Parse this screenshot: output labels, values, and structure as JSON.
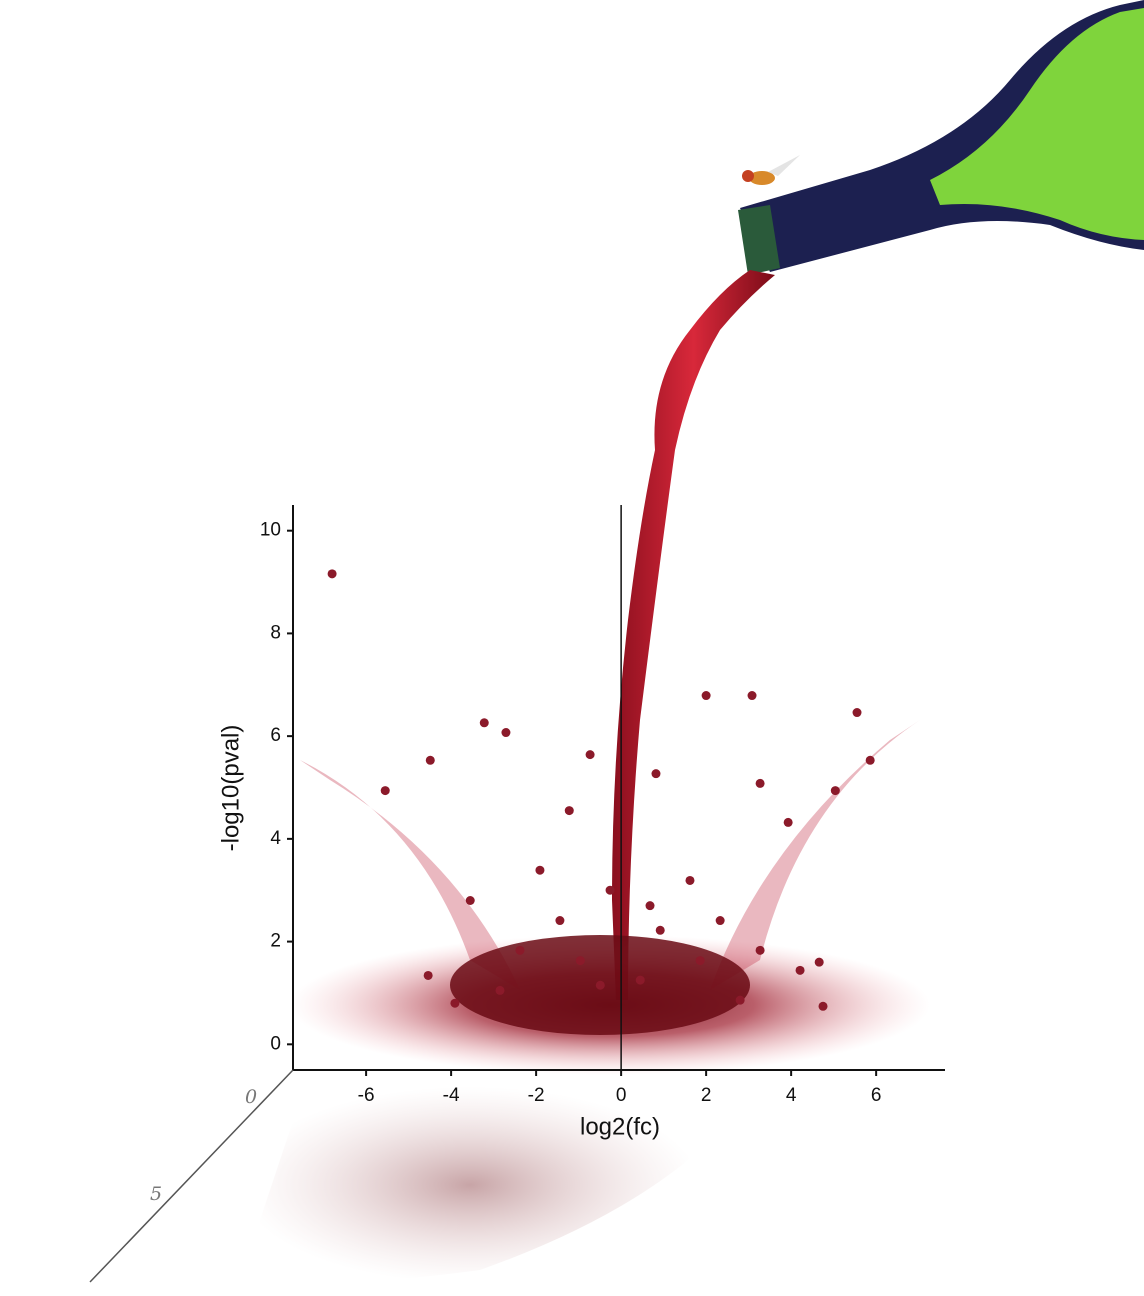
{
  "chart_data": {
    "type": "scatter",
    "x_label": "log2(fc)",
    "y_label": "-log10(pval)",
    "xlim": [
      -7.72,
      7.62
    ],
    "ylim": [
      -0.5,
      10.5
    ],
    "xticks": [
      -6,
      -4,
      -2,
      0,
      2,
      4,
      6
    ],
    "yticks": [
      0,
      2,
      4,
      6,
      8,
      10
    ],
    "reference_line_x": 0,
    "depth_ticks": [
      "0",
      "5"
    ],
    "color": "#8b1a2a",
    "x": [
      -6.8,
      -3.22,
      2.0,
      3.08,
      5.55,
      -2.71,
      4.66,
      4.75,
      -4.54,
      -3.91,
      -1.22,
      -0.73,
      0.82,
      3.27,
      3.93,
      -1.91,
      -3.55,
      1.62,
      2.33,
      4.21,
      3.27,
      -2.38,
      -1.44,
      0.92,
      1.86,
      -0.96,
      -2.85,
      2.8,
      0.45,
      -0.49,
      -4.49,
      -5.55,
      5.86,
      5.04,
      -0.26,
      0.68
    ],
    "values": [
      9.16,
      6.26,
      6.79,
      6.79,
      6.46,
      6.07,
      1.6,
      0.74,
      1.34,
      0.8,
      4.55,
      5.64,
      5.27,
      5.08,
      4.32,
      3.39,
      2.8,
      3.19,
      2.41,
      1.44,
      1.83,
      1.83,
      2.41,
      2.22,
      1.63,
      1.63,
      1.05,
      0.86,
      1.25,
      1.15,
      5.53,
      4.94,
      5.53,
      4.94,
      3.0,
      2.7
    ]
  }
}
